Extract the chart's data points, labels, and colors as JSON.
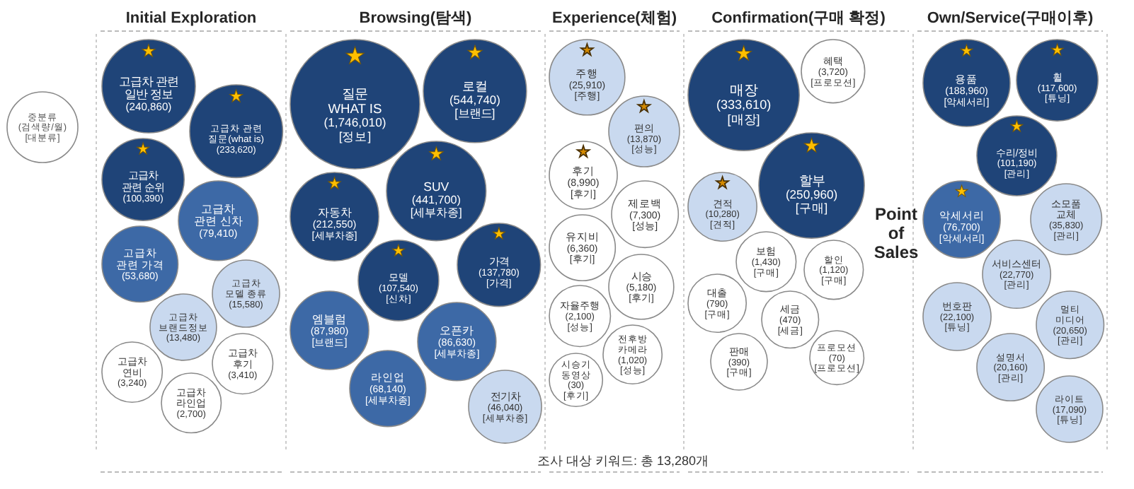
{
  "chart_data": [
    {
      "type": "other",
      "title": "Initial Exploration",
      "categories": [
        "고급차 관련\n일반 정보",
        "고급차 관련\n질문(what is)",
        "고급차\n관련 순위",
        "고급차\n관련 신차",
        "고급차\n관련 가격",
        "고급차\n모델 종류",
        "고급차\n브랜드정보",
        "고급차\n후기",
        "고급차\n연비",
        "고급차\n라인업"
      ],
      "values": [
        240860,
        233620,
        100390,
        79410,
        53680,
        15580,
        13480,
        3410,
        3240,
        2700
      ],
      "value_labels": [
        "(240,860)",
        "(233,620)",
        "(100,390)",
        "(79,410)",
        "(53,680)",
        "(15,580)",
        "(13,480)",
        "(3,410)",
        "(3,240)",
        "(2,700)"
      ],
      "colors": [
        "#1f4478",
        "#1f4478",
        "#1f4478",
        "#3d69a6",
        "#3d69a6",
        "#c9d9ef",
        "#c9d9ef",
        "#ffffff",
        "#ffffff",
        "#ffffff"
      ],
      "annotations": [
        "중분류\n(검색량/월)\n[대분류]",
        {
          "text": "★",
          "x": "고급차 관련\n일반 정보"
        },
        {
          "text": "★",
          "x": "고급차 관련\n질문(what is)"
        },
        {
          "text": "★",
          "x": "고급차\n관련 순위"
        }
      ]
    },
    {
      "type": "other",
      "title": "Browsing(탐색)",
      "categories": [
        "질문\nWHAT IS",
        "로컬",
        "SUV",
        "자동차",
        "가격",
        "모델",
        "엠블럼",
        "오픈카",
        "라인업",
        "전기차"
      ],
      "values": [
        1746010,
        544740,
        441700,
        212550,
        137780,
        107540,
        87980,
        86630,
        68140,
        46040
      ],
      "value_labels": [
        "(1,746,010)\n[정보]",
        "(544,740)\n[브랜드]",
        "(441,700)\n[세부차종]",
        "(212,550)\n[세부차종]",
        "(137,780)\n[가격]",
        "(107,540)\n[신차]",
        "(87,980)\n[브랜드]",
        "(86,630)\n[세부차종]",
        "(68,140)\n[세부차종]",
        "(46,040)\n[세부차종]"
      ],
      "colors": [
        "#1f4478",
        "#1f4478",
        "#1f4478",
        "#1f4478",
        "#1f4478",
        "#1f4478",
        "#3d69a6",
        "#3d69a6",
        "#3d69a6",
        "#c9d9ef"
      ],
      "annotations": [
        {
          "text": "★",
          "x": "질문\nWHAT IS"
        },
        {
          "text": "★",
          "x": "로컬"
        },
        {
          "text": "★",
          "x": "SUV"
        },
        {
          "text": "★",
          "x": "자동차"
        },
        {
          "text": "★",
          "x": "가격"
        },
        {
          "text": "★",
          "x": "모델"
        }
      ]
    },
    {
      "type": "other",
      "title": "Experience(체험)",
      "categories": [
        "주행",
        "편의",
        "후기",
        "제로백",
        "유지비",
        "시승",
        "자율주행",
        "전후방\n카메라",
        "시승기\n동영상"
      ],
      "values": [
        25910,
        13870,
        8990,
        7300,
        6360,
        5180,
        2100,
        1020,
        30
      ],
      "value_labels": [
        "(25,910)\n[주행]",
        "(13,870)\n[성능]",
        "(8,990)\n[후기]",
        "(7,300)\n[성능]",
        "(6,360)\n[후기]",
        "(5,180)\n[후기]",
        "(2,100)\n[성능]",
        "(1,020)\n[성능]",
        "(30)\n[후기]"
      ],
      "colors": [
        "#c9d9ef",
        "#c9d9ef",
        "#ffffff",
        "#ffffff",
        "#ffffff",
        "#ffffff",
        "#ffffff",
        "#ffffff",
        "#ffffff"
      ],
      "annotations": [
        {
          "text": "★",
          "x": "주행"
        },
        {
          "text": "★",
          "x": "편의"
        },
        {
          "text": "★",
          "x": "후기"
        },
        "조사 대상 키워드: 총 13,280개"
      ]
    },
    {
      "type": "other",
      "title": "Confirmation(구매 확정)",
      "categories": [
        "매장",
        "할부",
        "견적",
        "혜택",
        "보험",
        "할인",
        "대출",
        "세금",
        "판매",
        "프로모션"
      ],
      "values": [
        333610,
        250960,
        10280,
        3720,
        1430,
        1120,
        790,
        470,
        390,
        70
      ],
      "value_labels": [
        "(333,610)\n[매장]",
        "(250,960)\n[구매]",
        "(10,280)\n[견적]",
        "(3,720)\n[프로모션]",
        "(1,430)\n[구매]",
        "(1,120)\n[구매]",
        "(790)\n[구매]",
        "(470)\n[세금]",
        "(390)\n[구매]",
        "(70)\n[프로모션]"
      ],
      "colors": [
        "#1f4478",
        "#1f4478",
        "#c9d9ef",
        "#ffffff",
        "#ffffff",
        "#ffffff",
        "#ffffff",
        "#ffffff",
        "#ffffff",
        "#ffffff"
      ],
      "annotations": [
        {
          "text": "★",
          "x": "매장"
        },
        {
          "text": "★",
          "x": "할부"
        },
        {
          "text": "★",
          "x": "견적"
        },
        "Point\nof\nSales"
      ]
    },
    {
      "type": "other",
      "title": "Own/Service(구매이후)",
      "categories": [
        "용품",
        "휠",
        "수리/정비",
        "악세서리",
        "소모품\n교체",
        "서비스센터",
        "번호판",
        "멀티\n미디어",
        "설명서",
        "라이트"
      ],
      "values": [
        188960,
        117600,
        101190,
        76700,
        35830,
        22770,
        22100,
        20650,
        20160,
        17090
      ],
      "value_labels": [
        "(188,960)\n[악세서리]",
        "(117,600)\n[튜닝]",
        "(101,190)\n[관리]",
        "(76,700)\n[악세서리]",
        "(35,830)\n[관리]",
        "(22,770)\n[관리]",
        "(22,100)\n[튜닝]",
        "(20,650)\n[관리]",
        "(20,160)\n[관리]",
        "(17,090)\n[튜닝]"
      ],
      "colors": [
        "#1f4478",
        "#1f4478",
        "#1f4478",
        "#3d69a6",
        "#c9d9ef",
        "#c9d9ef",
        "#c9d9ef",
        "#c9d9ef",
        "#c9d9ef",
        "#c9d9ef"
      ],
      "annotations": [
        {
          "text": "★",
          "x": "용품"
        },
        {
          "text": "★",
          "x": "휠"
        },
        {
          "text": "★",
          "x": "수리/정비"
        },
        {
          "text": "★",
          "x": "악세서리"
        }
      ]
    }
  ]
}
